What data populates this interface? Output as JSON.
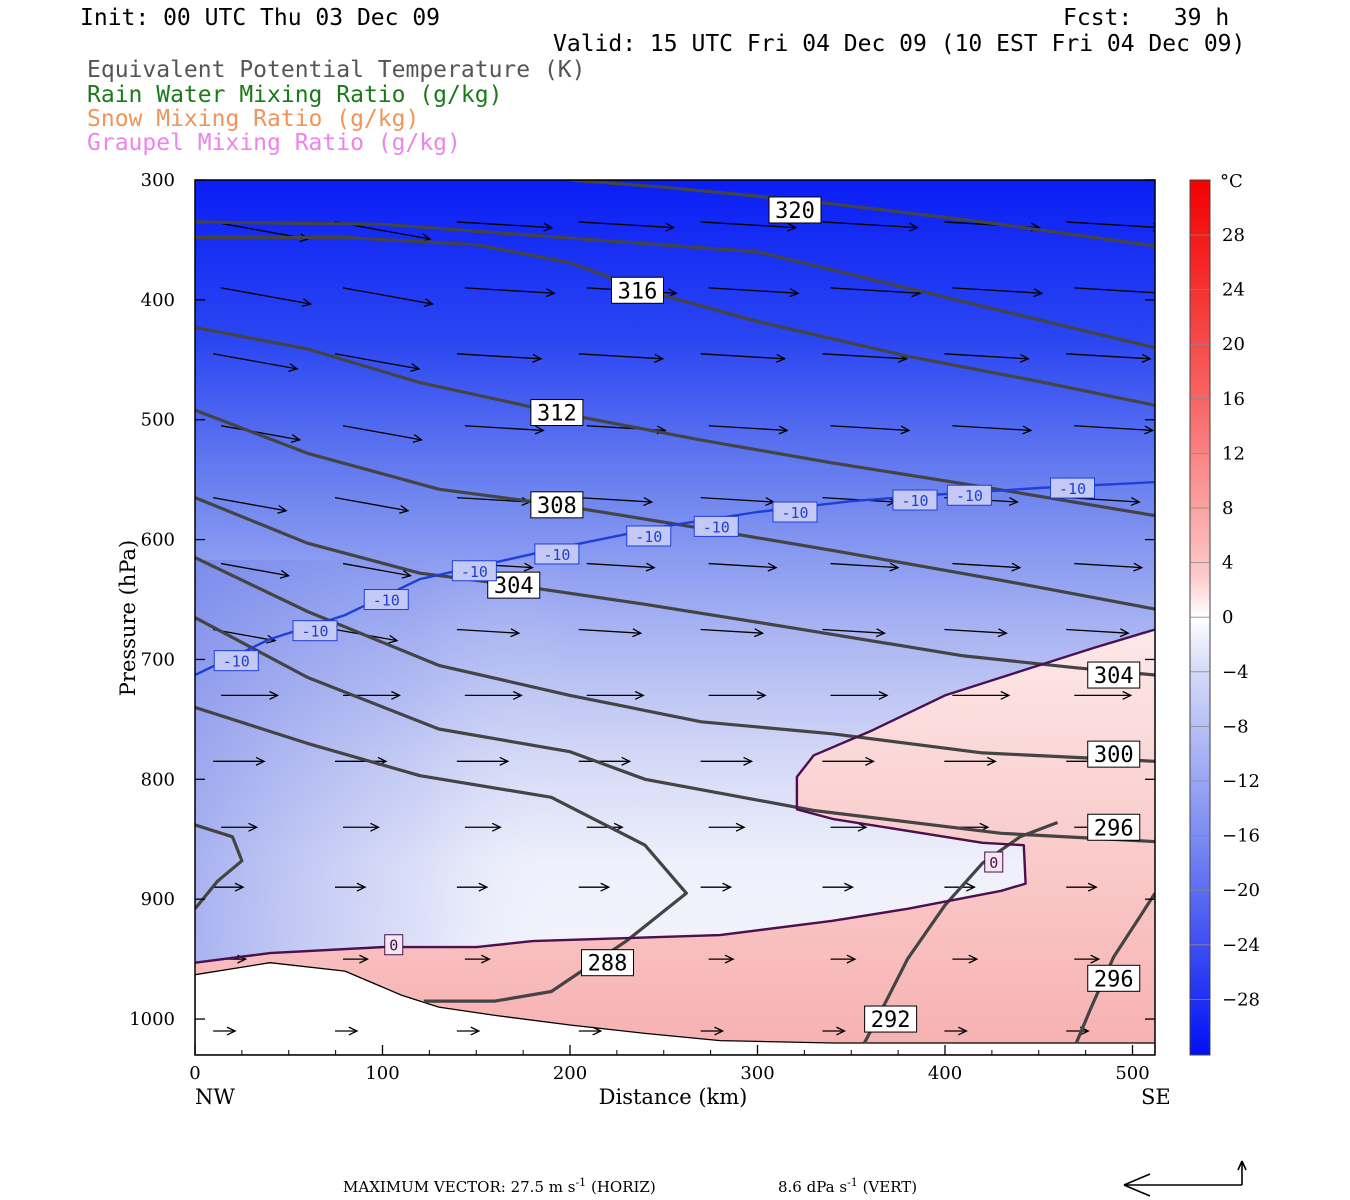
{
  "header": {
    "init": "Init: 00 UTC Thu 03 Dec 09",
    "fcst": "Fcst:   39 h",
    "valid": "Valid: 15 UTC Fri 04 Dec 09 (10 EST Fri 04 Dec 09)"
  },
  "legend": [
    {
      "label": "Equivalent Potential Temperature (K)",
      "color": "#555555"
    },
    {
      "label": "Rain Water Mixing Ratio (g/kg)",
      "color": "#1a7a1a"
    },
    {
      "label": "Snow Mixing Ratio (g/kg)",
      "color": "#f0955a"
    },
    {
      "label": "Graupel Mixing Ratio (g/kg)",
      "color": "#ee82ee"
    }
  ],
  "footer": {
    "max_vector": "MAXIMUM VECTOR:  27.5 m s",
    "horiz": "(HORIZ)",
    "vert_val": "8.6 dPa s",
    "vert": "(VERT)",
    "exp": "-1"
  },
  "chart_data": {
    "type": "contour",
    "xlabel": "Distance (km)",
    "ylabel": "Pressure (hPa)",
    "x_range": [
      0,
      512
    ],
    "y_range": [
      1030,
      300
    ],
    "x_ticks": [
      0,
      100,
      200,
      300,
      400,
      500
    ],
    "y_ticks": [
      300,
      400,
      500,
      600,
      700,
      800,
      900,
      1000
    ],
    "x_end_labels": {
      "left": "NW",
      "right": "SE"
    },
    "colorbar": {
      "unit": "°C",
      "labels": [
        28,
        24,
        20,
        16,
        12,
        8,
        4,
        0,
        -4,
        -8,
        -12,
        -16,
        -20,
        -24,
        -28
      ]
    },
    "theta_e_labels": [
      {
        "text": "320",
        "x": 320,
        "y": 325
      },
      {
        "text": "316",
        "x": 236,
        "y": 392
      },
      {
        "text": "312",
        "x": 193,
        "y": 494
      },
      {
        "text": "308",
        "x": 193,
        "y": 571
      },
      {
        "text": "304",
        "x": 170,
        "y": 638
      },
      {
        "text": "304",
        "x": 490,
        "y": 713
      },
      {
        "text": "300",
        "x": 490,
        "y": 779
      },
      {
        "text": "296",
        "x": 490,
        "y": 840
      },
      {
        "text": "288",
        "x": 220,
        "y": 953
      },
      {
        "text": "292",
        "x": 371,
        "y": 1000
      },
      {
        "text": "296",
        "x": 490,
        "y": 966
      }
    ],
    "theta_e_lines": [
      {
        "name": "324",
        "points": [
          [
            0,
            335
          ],
          [
            100,
            337
          ],
          [
            300,
            360
          ],
          [
            512,
            440
          ]
        ]
      },
      {
        "name": "320",
        "points": [
          [
            200,
            300
          ],
          [
            250,
            306
          ],
          [
            330,
            318
          ],
          [
            420,
            335
          ],
          [
            512,
            355
          ]
        ]
      },
      {
        "name": "316",
        "points": [
          [
            0,
            348
          ],
          [
            80,
            348
          ],
          [
            150,
            354
          ],
          [
            200,
            369
          ],
          [
            240,
            392
          ],
          [
            300,
            418
          ],
          [
            380,
            447
          ],
          [
            450,
            468
          ],
          [
            512,
            488
          ]
        ]
      },
      {
        "name": "312",
        "points": [
          [
            0,
            423
          ],
          [
            60,
            441
          ],
          [
            120,
            469
          ],
          [
            193,
            494
          ],
          [
            270,
            517
          ],
          [
            340,
            536
          ],
          [
            420,
            556
          ],
          [
            512,
            580
          ]
        ]
      },
      {
        "name": "308",
        "points": [
          [
            0,
            492
          ],
          [
            60,
            528
          ],
          [
            130,
            558
          ],
          [
            193,
            571
          ],
          [
            260,
            588
          ],
          [
            340,
            609
          ],
          [
            430,
            634
          ],
          [
            512,
            658
          ]
        ]
      },
      {
        "name": "304",
        "points": [
          [
            0,
            565
          ],
          [
            60,
            603
          ],
          [
            120,
            628
          ],
          [
            170,
            638
          ],
          [
            240,
            654
          ],
          [
            320,
            674
          ],
          [
            410,
            697
          ],
          [
            470,
            707
          ],
          [
            512,
            713
          ]
        ]
      },
      {
        "name": "300",
        "points": [
          [
            0,
            615
          ],
          [
            60,
            660
          ],
          [
            130,
            705
          ],
          [
            200,
            730
          ],
          [
            270,
            752
          ],
          [
            340,
            762
          ],
          [
            420,
            778
          ],
          [
            512,
            785
          ]
        ]
      },
      {
        "name": "296",
        "points": [
          [
            0,
            665
          ],
          [
            60,
            715
          ],
          [
            130,
            758
          ],
          [
            200,
            777
          ],
          [
            240,
            800
          ],
          [
            330,
            826
          ],
          [
            430,
            845
          ],
          [
            512,
            852
          ]
        ]
      },
      {
        "name": "292",
        "points": [
          [
            0,
            740
          ],
          [
            60,
            770
          ],
          [
            120,
            797
          ],
          [
            190,
            815
          ],
          [
            240,
            855
          ],
          [
            262,
            895
          ],
          [
            230,
            935
          ],
          [
            190,
            977
          ],
          [
            160,
            985
          ],
          [
            122,
            985
          ]
        ]
      },
      {
        "name": "292b",
        "points": [
          [
            0,
            838
          ],
          [
            20,
            848
          ],
          [
            25,
            868
          ],
          [
            12,
            885
          ],
          [
            0,
            908
          ]
        ]
      },
      {
        "name": "292c",
        "points": [
          [
            357,
            1020
          ],
          [
            367,
            990
          ],
          [
            380,
            950
          ],
          [
            400,
            905
          ],
          [
            420,
            870
          ],
          [
            440,
            848
          ],
          [
            460,
            836
          ]
        ]
      },
      {
        "name": "296b",
        "points": [
          [
            470,
            1020
          ],
          [
            478,
            990
          ],
          [
            490,
            948
          ],
          [
            505,
            912
          ],
          [
            512,
            895
          ]
        ]
      }
    ],
    "temp_lines": [
      {
        "value": "-10",
        "color": "#1f3fd6",
        "points": [
          [
            0,
            713
          ],
          [
            40,
            683
          ],
          [
            80,
            663
          ],
          [
            120,
            633
          ],
          [
            160,
            619
          ],
          [
            200,
            605
          ],
          [
            250,
            589
          ],
          [
            300,
            577
          ],
          [
            350,
            568
          ],
          [
            400,
            562
          ],
          [
            450,
            557
          ],
          [
            512,
            552
          ]
        ]
      },
      {
        "value": "0",
        "color": "#4a1050",
        "points": [
          [
            0,
            953
          ],
          [
            40,
            945
          ],
          [
            100,
            940
          ],
          [
            150,
            940
          ],
          [
            180,
            935
          ],
          [
            220,
            933
          ],
          [
            280,
            930
          ],
          [
            340,
            918
          ],
          [
            380,
            908
          ],
          [
            430,
            893
          ],
          [
            443,
            887
          ],
          [
            442,
            855
          ],
          [
            420,
            853
          ],
          [
            340,
            833
          ],
          [
            321,
            825
          ],
          [
            321,
            798
          ],
          [
            330,
            780
          ],
          [
            360,
            760
          ],
          [
            400,
            730
          ],
          [
            440,
            710
          ],
          [
            480,
            690
          ],
          [
            512,
            675
          ]
        ]
      }
    ],
    "temp_labels": [
      {
        "text": "-10",
        "x": 22,
        "y": 701
      },
      {
        "text": "-10",
        "x": 64,
        "y": 676
      },
      {
        "text": "-10",
        "x": 102,
        "y": 650
      },
      {
        "text": "-10",
        "x": 149,
        "y": 626
      },
      {
        "text": "-10",
        "x": 193,
        "y": 612
      },
      {
        "text": "-10",
        "x": 242,
        "y": 597
      },
      {
        "text": "-10",
        "x": 278,
        "y": 589
      },
      {
        "text": "-10",
        "x": 320,
        "y": 577
      },
      {
        "text": "-10",
        "x": 384,
        "y": 567
      },
      {
        "text": "-10",
        "x": 413,
        "y": 563
      },
      {
        "text": "-10",
        "x": 468,
        "y": 557
      },
      {
        "text": "0",
        "x": 106,
        "y": 938
      },
      {
        "text": "0",
        "x": 426,
        "y": 869
      }
    ]
  }
}
